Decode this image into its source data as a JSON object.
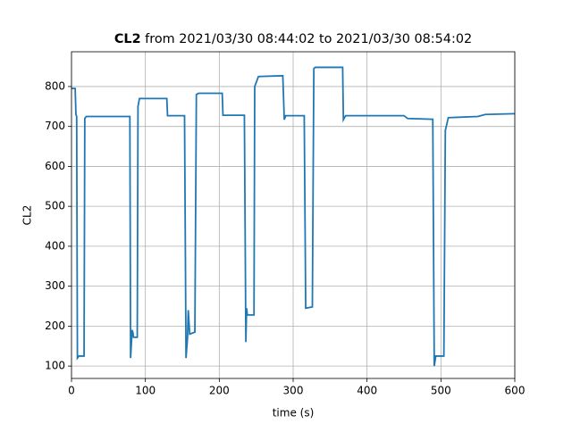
{
  "chart_data": {
    "type": "line",
    "title": [
      "CL2",
      "from 2021/03/30 08:44:02 to 2021/03/30 08:54:02"
    ],
    "x_label": "time (s)",
    "y_label": "CL2",
    "xlim": [
      0,
      600
    ],
    "xticks": [
      0,
      100,
      200,
      300,
      400,
      500,
      600
    ],
    "ylim": [
      69,
      887
    ],
    "yticks": [
      100,
      200,
      300,
      400,
      500,
      600,
      700,
      800
    ],
    "grid": true,
    "series": [
      {
        "name": "CL2",
        "color": "#1f77b4",
        "x": [
          0,
          5,
          6,
          7,
          8,
          10,
          17,
          18,
          20,
          79,
          80,
          82,
          83,
          84,
          89,
          90,
          92,
          129,
          130,
          153,
          155,
          157,
          158,
          160,
          167,
          169,
          172,
          204,
          205,
          234,
          236,
          237,
          238,
          239,
          247,
          248,
          253,
          286,
          288,
          290,
          315,
          317,
          326,
          328,
          330,
          367,
          368,
          371,
          450,
          455,
          489,
          491,
          493,
          504,
          506,
          510,
          550,
          560,
          600
        ],
        "values": [
          795,
          795,
          730,
          725,
          120,
          125,
          125,
          720,
          725,
          725,
          120,
          190,
          185,
          172,
          172,
          750,
          770,
          770,
          727,
          727,
          120,
          170,
          240,
          180,
          185,
          780,
          783,
          783,
          728,
          728,
          160,
          245,
          228,
          228,
          228,
          800,
          825,
          827,
          717,
          727,
          727,
          245,
          248,
          845,
          848,
          848,
          717,
          727,
          727,
          720,
          718,
          100,
          125,
          125,
          690,
          722,
          725,
          730,
          732
        ]
      }
    ]
  }
}
